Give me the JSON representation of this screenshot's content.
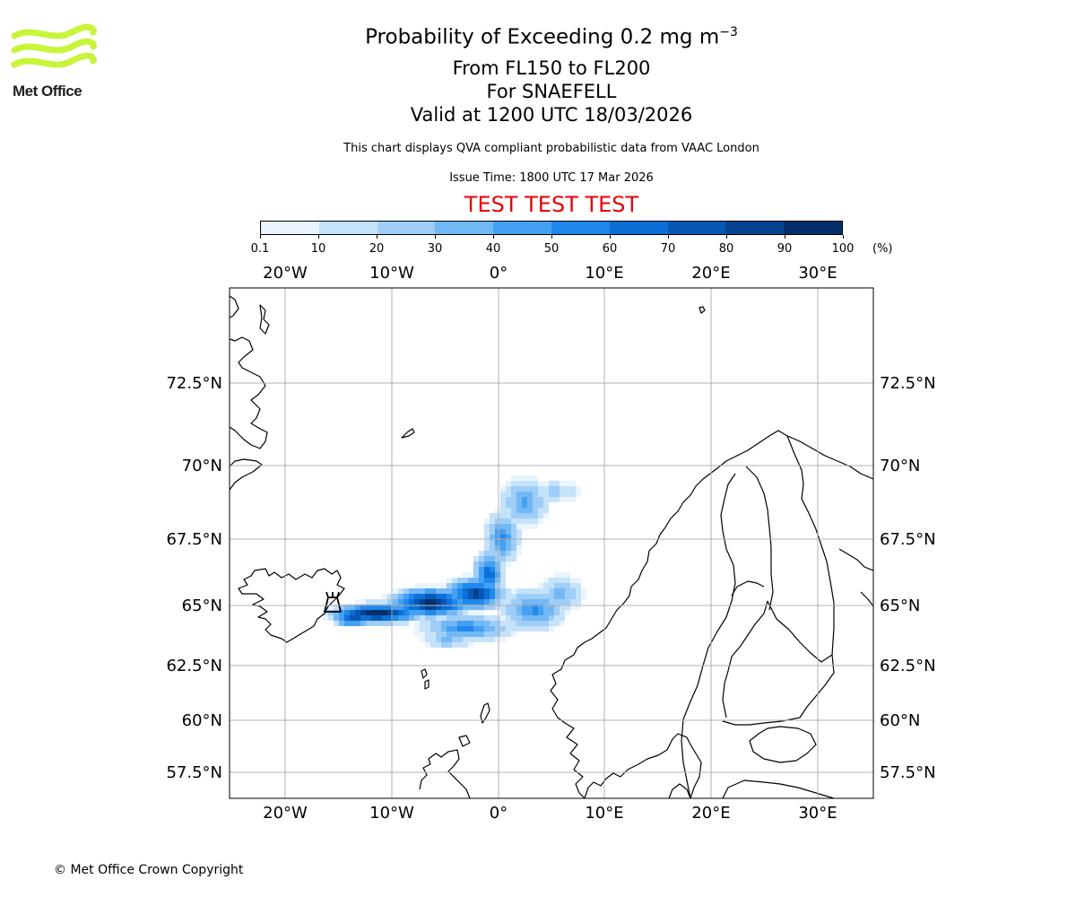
{
  "branding": {
    "logo_text": "Met Office",
    "logo_color": "#c8f43a"
  },
  "header": {
    "title_prefix": "Probability of Exceeding 0.2 mg m",
    "title_superscript": "−3",
    "levels": "From FL150 to FL200",
    "volcano": "For SNAEFELL",
    "valid": "Valid at 1200 UTC 18/03/2026",
    "description": "This chart displays QVA compliant probabilistic data from VAAC London",
    "issue_time": "Issue Time: 1800 UTC 17 Mar 2026",
    "test_banner": "TEST TEST TEST",
    "test_color": "#e8000b"
  },
  "colorbar": {
    "ticks": [
      "0.1",
      "10",
      "20",
      "30",
      "40",
      "50",
      "60",
      "70",
      "80",
      "90",
      "100"
    ],
    "units": "(%)",
    "colors": [
      "#eaf4ff",
      "#c5e2fb",
      "#9ecdf7",
      "#72b8f5",
      "#44a0f2",
      "#1e88ed",
      "#0b6fd7",
      "#0758b5",
      "#04428f",
      "#032f6a"
    ]
  },
  "map": {
    "lon_labels": [
      "20°W",
      "10°W",
      "0°",
      "10°E",
      "20°E",
      "30°E"
    ],
    "lat_labels": [
      "72.5°N",
      "70°N",
      "67.5°N",
      "65°N",
      "62.5°N",
      "60°N",
      "57.5°N"
    ],
    "volcano_marker": "Snaefell"
  },
  "footer": {
    "copyright": "© Met Office Crown Copyright"
  }
}
